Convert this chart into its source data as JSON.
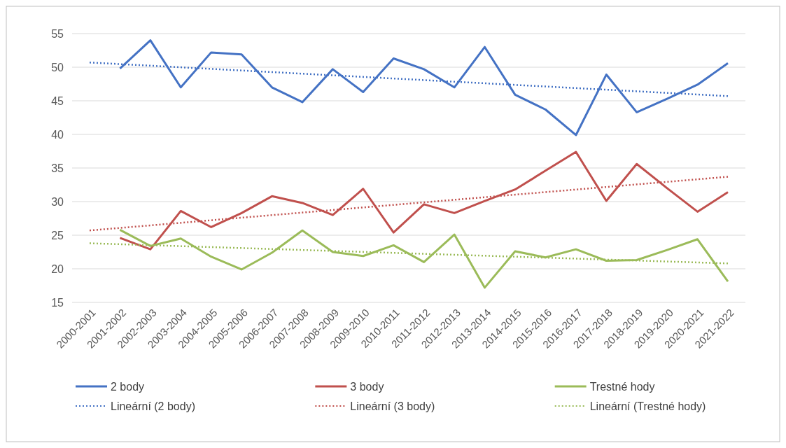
{
  "chart_data": {
    "type": "line",
    "categories": [
      "2000-2001",
      "2001-2002",
      "2002-2003",
      "2003-2004",
      "2004-2005",
      "2005-2006",
      "2006-2007",
      "2007-2008",
      "2008-2009",
      "2009-2010",
      "2010-2011",
      "2011-2012",
      "2012-2013",
      "2013-2014",
      "2014-2015",
      "2015-2016",
      "2016-2017",
      "2017-2018",
      "2018-2019",
      "2019-2020",
      "2020-2021",
      "2021-2022"
    ],
    "ylim": [
      15,
      55
    ],
    "yticks": [
      15,
      20,
      25,
      30,
      35,
      40,
      45,
      50,
      55
    ],
    "grid": "y",
    "legend": "bottom",
    "series": [
      {
        "name": "2 body",
        "color": "#4472c4",
        "line_style": "solid",
        "values": [
          null,
          49.8,
          54.0,
          47.0,
          52.2,
          51.9,
          47.0,
          44.8,
          49.7,
          46.3,
          51.3,
          49.7,
          47.0,
          53.0,
          45.9,
          43.7,
          39.9,
          48.9,
          43.3,
          45.3,
          47.4,
          50.6
        ]
      },
      {
        "name": "3 body",
        "color": "#c0504d",
        "line_style": "solid",
        "values": [
          null,
          24.6,
          22.9,
          28.6,
          26.2,
          28.3,
          30.8,
          29.8,
          28.0,
          31.9,
          25.4,
          29.6,
          28.3,
          30.1,
          31.8,
          34.6,
          37.4,
          30.1,
          35.6,
          32.0,
          28.5,
          31.4
        ]
      },
      {
        "name": "Trestné hody",
        "color": "#9bbb59",
        "line_style": "solid",
        "values": [
          null,
          25.8,
          23.4,
          24.5,
          21.8,
          19.9,
          22.4,
          25.7,
          22.5,
          21.9,
          23.5,
          21.0,
          25.1,
          17.2,
          22.6,
          21.7,
          22.9,
          21.2,
          21.3,
          22.8,
          24.4,
          18.1
        ]
      },
      {
        "name": "Lineární (2 body)",
        "color": "#4472c4",
        "type": "line",
        "line_style": "dotted",
        "x": [
          "2000-2001",
          "2021-2022"
        ],
        "values": [
          50.7,
          45.7
        ]
      },
      {
        "name": "Lineární (3 body)",
        "color": "#c0504d",
        "type": "line",
        "line_style": "dotted",
        "x": [
          "2000-2001",
          "2021-2022"
        ],
        "values": [
          25.7,
          33.7
        ]
      },
      {
        "name": "Lineární (Trestné hody)",
        "color": "#9bbb59",
        "type": "line",
        "line_style": "dotted",
        "x": [
          "2000-2001",
          "2021-2022"
        ],
        "values": [
          23.8,
          20.8
        ]
      }
    ]
  }
}
